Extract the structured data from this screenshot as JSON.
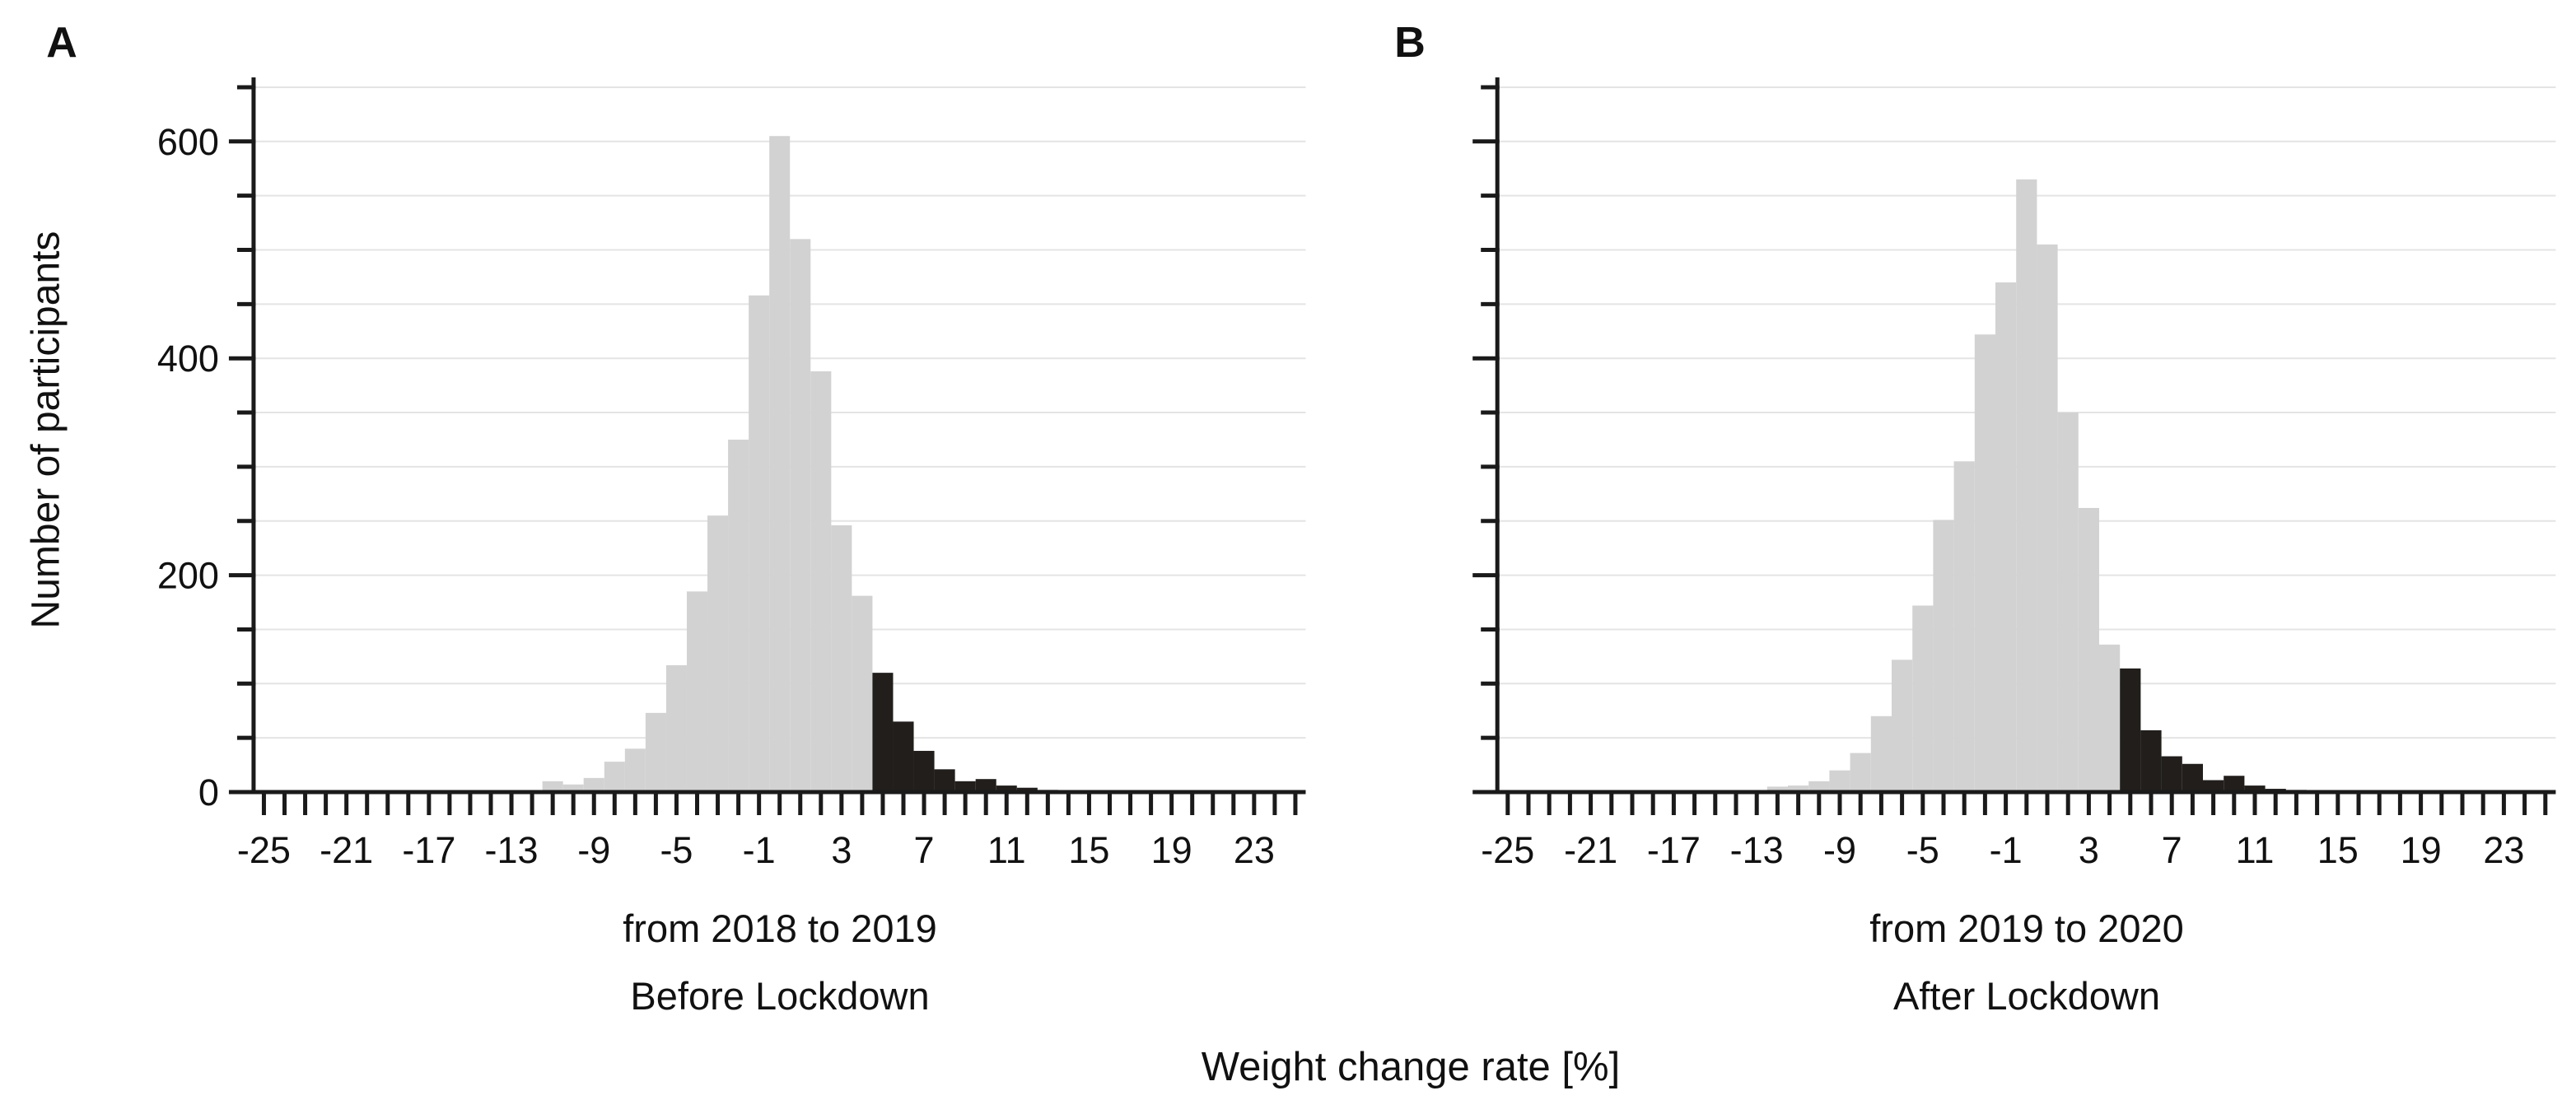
{
  "figure": {
    "panel_a_label": "A",
    "panel_b_label": "B",
    "y_axis_label": "Number of participants",
    "x_axis_label": "Weight change rate [%]"
  },
  "colors": {
    "bar_normal": "#d2d2d2",
    "bar_highlight": "#211e1c",
    "axis": "#1a1a1a",
    "gridline": "#e4e4e4",
    "background": "#ffffff"
  },
  "chart_data": [
    {
      "type": "bar",
      "subtype": "histogram",
      "panel": "A",
      "caption_line1": "from 2018 to 2019",
      "caption_line2": "Before Lockdown",
      "x": [
        -11,
        -10,
        -9,
        -8,
        -7,
        -6,
        -5,
        -4,
        -3,
        -2,
        -1,
        0,
        1,
        2,
        3,
        4,
        5,
        6,
        7,
        8,
        9,
        10,
        11,
        12,
        13
      ],
      "values": [
        10,
        7,
        13,
        28,
        40,
        73,
        117,
        185,
        255,
        325,
        458,
        605,
        510,
        388,
        246,
        181,
        110,
        65,
        38,
        21,
        10,
        12,
        6,
        4,
        2
      ],
      "highlight_from_x": 5,
      "xlim": [
        -25.5,
        25.5
      ],
      "ylim": [
        0,
        650
      ],
      "x_tick_step": 1,
      "x_label_ticks": [
        -25,
        -21,
        -17,
        -13,
        -9,
        -5,
        -1,
        3,
        7,
        11,
        15,
        19,
        23
      ],
      "y_tick_step": 50,
      "y_labeled_ticks": [
        0,
        200,
        400,
        600
      ],
      "show_y_tick_labels": true,
      "grid": true,
      "legend": "none"
    },
    {
      "type": "bar",
      "subtype": "histogram",
      "panel": "B",
      "caption_line1": "from 2019 to 2020",
      "caption_line2": "After Lockdown",
      "x": [
        -12,
        -11,
        -10,
        -9,
        -8,
        -7,
        -6,
        -5,
        -4,
        -3,
        -2,
        -1,
        0,
        1,
        2,
        3,
        4,
        5,
        6,
        7,
        8,
        9,
        10,
        11,
        12,
        13
      ],
      "values": [
        5,
        6,
        10,
        20,
        36,
        70,
        122,
        172,
        251,
        305,
        422,
        470,
        565,
        505,
        350,
        262,
        136,
        114,
        57,
        33,
        26,
        11,
        15,
        6,
        3,
        2
      ],
      "highlight_from_x": 5,
      "xlim": [
        -25.5,
        25.5
      ],
      "ylim": [
        0,
        650
      ],
      "x_tick_step": 1,
      "x_label_ticks": [
        -25,
        -21,
        -17,
        -13,
        -9,
        -5,
        -1,
        3,
        7,
        11,
        15,
        19,
        23
      ],
      "y_tick_step": 50,
      "y_labeled_ticks": [
        0,
        200,
        400,
        600
      ],
      "show_y_tick_labels": false,
      "grid": true,
      "legend": "none"
    }
  ]
}
